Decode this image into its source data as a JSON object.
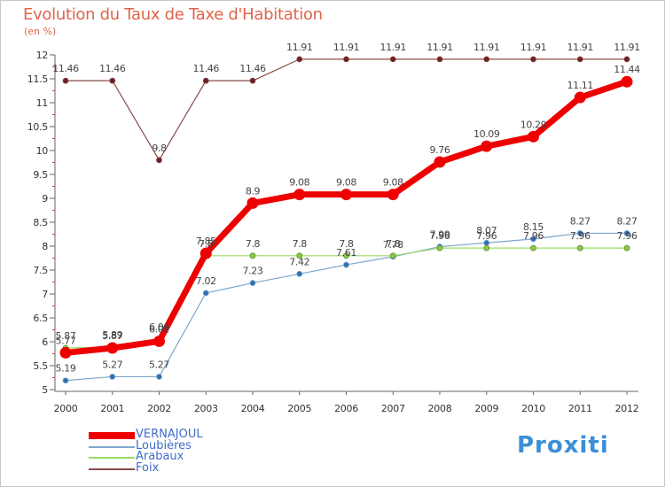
{
  "chart_data": {
    "type": "line",
    "title": "Evolution du Taux de Taxe d'Habitation",
    "unit_label": "(en %)",
    "xlabel": "",
    "ylabel": "",
    "x": [
      "2000",
      "2001",
      "2002",
      "2003",
      "2004",
      "2005",
      "2006",
      "2007",
      "2008",
      "2009",
      "2010",
      "2011",
      "2012"
    ],
    "ylim": [
      5,
      12
    ],
    "yticks": [
      "5",
      "5.5",
      "6",
      "6.5",
      "7",
      "7.5",
      "8",
      "8.5",
      "9",
      "9.5",
      "10",
      "10.5",
      "11",
      "11.5",
      "12"
    ],
    "grid": false,
    "series": [
      {
        "name": "VERNAJOUL",
        "color": "#ee0000",
        "values": [
          5.77,
          5.87,
          6.01,
          7.85,
          8.9,
          9.08,
          9.08,
          9.08,
          9.76,
          10.09,
          10.29,
          11.11,
          11.44
        ],
        "labels": [
          "5.77",
          "5.87",
          "6.01",
          "7.85",
          "8.9",
          "9.08",
          "9.08",
          "9.08",
          "9.76",
          "10.09",
          "10.29",
          "11.11",
          "11.44"
        ]
      },
      {
        "name": "Loubières",
        "color": "#7ea7cc",
        "values": [
          5.19,
          5.27,
          5.27,
          7.02,
          7.23,
          7.42,
          7.61,
          7.78,
          7.99,
          8.07,
          8.15,
          8.27,
          8.27
        ],
        "labels": [
          "5.19",
          "5.27",
          "5.27",
          "7.02",
          "7.23",
          "7.42",
          "7.61",
          "7.78",
          "7.99",
          "8.07",
          "8.15",
          "8.27",
          "8.27"
        ]
      },
      {
        "name": "Arabaux",
        "color": "#99dd66",
        "values": [
          5.87,
          5.89,
          6.06,
          7.8,
          7.8,
          7.8,
          7.8,
          7.8,
          7.96,
          7.96,
          7.96,
          7.96,
          7.96
        ],
        "labels": [
          "5.87",
          "5.89",
          "6.06",
          "7.8",
          "7.8",
          "7.8",
          "7.8",
          "7.8",
          "7.96",
          "7.96",
          "7.96",
          "7.96",
          "7.96"
        ]
      },
      {
        "name": "Foix",
        "color": "#8b4a4a",
        "values": [
          11.46,
          11.46,
          9.8,
          11.46,
          11.46,
          11.91,
          11.91,
          11.91,
          11.91,
          11.91,
          11.91,
          11.91,
          11.91
        ],
        "labels": [
          "11.46",
          "11.46",
          "9.8",
          "11.46",
          "11.46",
          "11.91",
          "11.91",
          "11.91",
          "11.91",
          "11.91",
          "11.91",
          "11.91",
          "11.91"
        ]
      }
    ]
  },
  "brand": "Proxiti"
}
